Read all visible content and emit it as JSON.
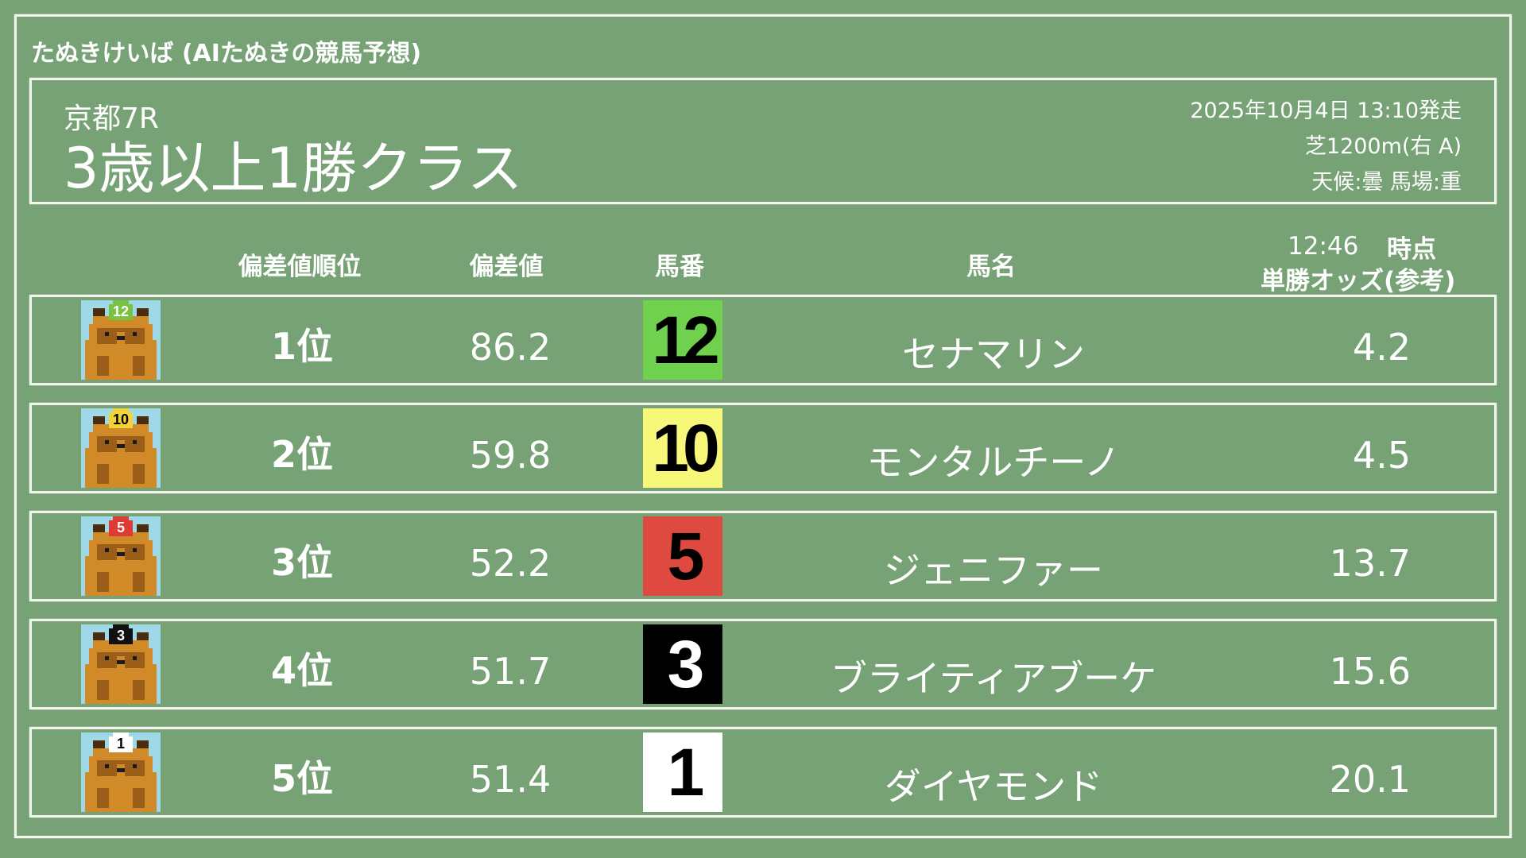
{
  "app_title": "たぬきけいば (AIたぬきの競馬予想)",
  "race": {
    "venue": "京都7R",
    "name": "3歳以上1勝クラス",
    "datetime": "2025年10月4日 13:10発走",
    "course": "芝1200m(右 A)",
    "conditions": "天候:曇 馬場:重"
  },
  "columns": {
    "rank": "偏差値順位",
    "score": "偏差値",
    "number": "馬番",
    "name": "馬名",
    "odds_time": "12:46",
    "odds_time_suffix": "時点",
    "odds": "単勝オッズ(参考)"
  },
  "rows": [
    {
      "rank": "1位",
      "score": "86.2",
      "number": "12",
      "name": "セナマリン",
      "odds": "4.2",
      "bg": "#6fd14d",
      "fg": "#000000",
      "cap": "#7cc242"
    },
    {
      "rank": "2位",
      "score": "59.8",
      "number": "10",
      "name": "モンタルチーノ",
      "odds": "4.5",
      "bg": "#f7f77a",
      "fg": "#000000",
      "cap": "#f2d33a"
    },
    {
      "rank": "3位",
      "score": "52.2",
      "number": "5",
      "name": "ジェニファー",
      "odds": "13.7",
      "bg": "#de4a40",
      "fg": "#000000",
      "cap": "#e03a35"
    },
    {
      "rank": "4位",
      "score": "51.7",
      "number": "3",
      "name": "ブライティアブーケ",
      "odds": "15.6",
      "bg": "#000000",
      "fg": "#ffffff",
      "cap": "#111111"
    },
    {
      "rank": "5位",
      "score": "51.4",
      "number": "1",
      "name": "ダイヤモンド",
      "odds": "20.1",
      "bg": "#ffffff",
      "fg": "#000000",
      "cap": "#ffffff"
    }
  ]
}
